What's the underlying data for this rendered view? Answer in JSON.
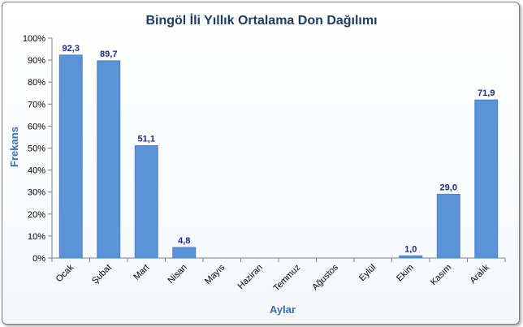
{
  "chart_data": {
    "type": "bar",
    "title": "Bingöl İli Yıllık Ortalama Don Dağılımı",
    "xlabel": "Aylar",
    "ylabel": "Frekans",
    "categories": [
      "Ocak",
      "Şubat",
      "Mart",
      "Nisan",
      "Mayıs",
      "Haziran",
      "Temmuz",
      "Ağustos",
      "Eylül",
      "Ekim",
      "Kasım",
      "Aralık"
    ],
    "values": [
      92.3,
      89.7,
      51.1,
      4.8,
      0,
      0,
      0,
      0,
      0,
      1.0,
      29.0,
      71.9
    ],
    "data_labels": [
      "92,3",
      "89,7",
      "51,1",
      "4,8",
      "",
      "",
      "",
      "",
      "",
      "1,0",
      "29,0",
      "71,9"
    ],
    "yticks": [
      "0%",
      "10%",
      "20%",
      "30%",
      "40%",
      "50%",
      "60%",
      "70%",
      "80%",
      "90%",
      "100%"
    ],
    "ylim": [
      0,
      100
    ],
    "grid": false,
    "legend": "none",
    "bar_color": "#5b93d9",
    "bar_edge_color": "#4a7fc4",
    "label_color": "#1b2a8c",
    "axis_title_color": "#3a6db0",
    "title_color": "#1f3a64"
  }
}
